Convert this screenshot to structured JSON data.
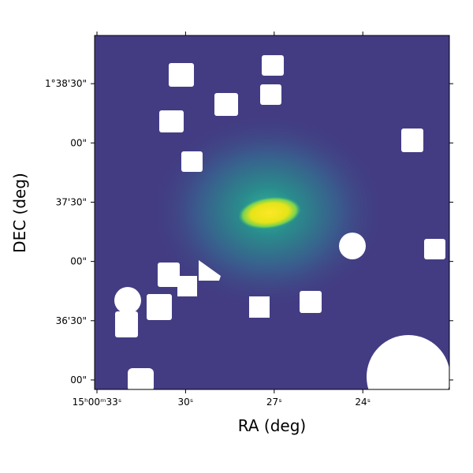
{
  "chart_data": {
    "type": "image",
    "xlabel": "RA (deg)",
    "ylabel": "DEC (deg)",
    "xlim": [
      33.08,
      21.07
    ],
    "xticks": [
      {
        "value": 33,
        "label": "15ʰ00ᵐ33ˢ"
      },
      {
        "value": 30,
        "label": "30ˢ"
      },
      {
        "value": 27,
        "label": "27ˢ"
      },
      {
        "value": 24,
        "label": "24ˢ"
      }
    ],
    "ylim": [
      2155.2,
      2334.4
    ],
    "yticks": [
      {
        "value": 2310,
        "label": "1°38'30\""
      },
      {
        "value": 2280,
        "label": "00\""
      },
      {
        "value": 2250,
        "label": "37'30\""
      },
      {
        "value": 2220,
        "label": "00\""
      },
      {
        "value": 2190,
        "label": "36'30\""
      },
      {
        "value": 2160,
        "label": "00\""
      }
    ]
  }
}
